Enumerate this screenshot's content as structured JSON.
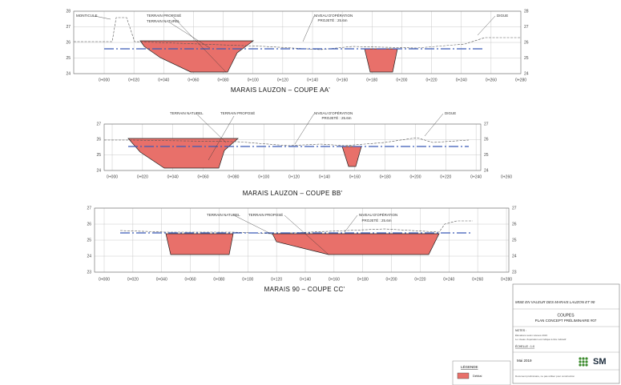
{
  "sections": [
    {
      "title": "MARAIS LAUZON – COUPE AA'",
      "y_labels": [
        "28",
        "27",
        "26",
        "25",
        "24"
      ],
      "x_labels": [
        "0+000",
        "0+020",
        "0+040",
        "0+060",
        "0+080",
        "0+100",
        "0+120",
        "0+140",
        "0+160",
        "0+180",
        "0+200",
        "0+220",
        "0+240",
        "0+260",
        "0+280"
      ],
      "annotations": [
        "MONTICULE",
        "TERRAIN PROPOSÉ",
        "TERRAIN NATUREL",
        "NIVEAU D'OPÉRATION",
        "PROJETÉ : 25.6m",
        "DIGUE"
      ]
    },
    {
      "title": "MARAIS LAUZON – COUPE BB'",
      "y_labels": [
        "27",
        "26",
        "25",
        "24"
      ],
      "x_labels": [
        "0+000",
        "0+020",
        "0+040",
        "0+060",
        "0+080",
        "0+100",
        "0+120",
        "0+140",
        "0+160",
        "0+180",
        "0+200",
        "0+220",
        "0+240",
        "0+260"
      ],
      "annotations": [
        "TERRAIN NATUREL",
        "TERRAIN PROPOSÉ",
        "NIVEAU D'OPÉRATION",
        "PROJETÉ : 25.6m",
        "DIGUE"
      ]
    },
    {
      "title": "MARAIS 90 – COUPE CC'",
      "y_labels": [
        "27",
        "26",
        "25",
        "24",
        "23"
      ],
      "x_labels": [
        "0+000",
        "0+020",
        "0+040",
        "0+060",
        "0+080",
        "0+100",
        "0+120",
        "0+140",
        "0+160",
        "0+180",
        "0+200",
        "0+220",
        "0+240",
        "0+260",
        "0+280"
      ],
      "annotations": [
        "TERRAIN NATUREL",
        "TERRAIN PROPOSÉ",
        "NIVEAU D'OPÉRATION",
        "PROJETÉ : 25.6m"
      ]
    }
  ],
  "title_block": {
    "project": "MISE EN VALEUR DES MARAIS LAUZON ET 90",
    "sheet": "COUPES",
    "subtitle": "PLAN CONCEPT PRÉLIMINAIRE #07",
    "notes_title": "NOTES :",
    "notes": [
      "Élévations selon relevés 2019",
      "Le niveau d'opération est indiqué à titre indicatif"
    ],
    "scale": "ÉCHELLE : 1:X",
    "date": "Mai 2019",
    "logo": "SM",
    "footer": "Document préliminaire, ne pas utiliser pour construction"
  },
  "legend": {
    "title": "LÉGENDE",
    "items": [
      "Déblai"
    ]
  }
}
